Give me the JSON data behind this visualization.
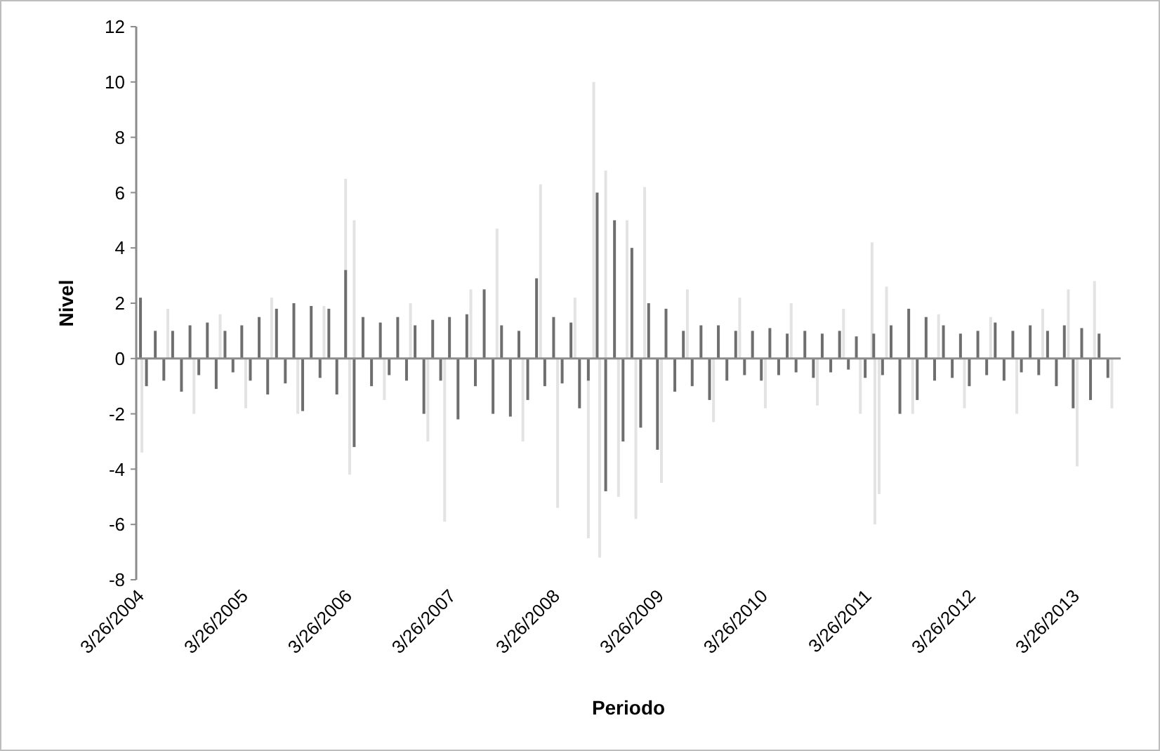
{
  "chart_data": {
    "type": "bar",
    "xlabel": "Periodo",
    "ylabel": "Nivel",
    "xlim": [
      "2004-03-26",
      "2013-09-15"
    ],
    "xticks": [
      {
        "value": "2004-03-26",
        "label": "3/26/2004"
      },
      {
        "value": "2005-03-26",
        "label": "3/26/2005"
      },
      {
        "value": "2006-03-26",
        "label": "3/26/2006"
      },
      {
        "value": "2007-03-26",
        "label": "3/26/2007"
      },
      {
        "value": "2008-03-26",
        "label": "3/26/2008"
      },
      {
        "value": "2009-03-26",
        "label": "3/26/2009"
      },
      {
        "value": "2010-03-26",
        "label": "3/26/2010"
      },
      {
        "value": "2011-03-26",
        "label": "3/26/2011"
      },
      {
        "value": "2012-03-26",
        "label": "3/26/2012"
      },
      {
        "value": "2013-03-26",
        "label": "3/26/2013"
      }
    ],
    "ylim": [
      -8,
      12
    ],
    "yticks": [
      -8,
      -6,
      -4,
      -2,
      0,
      2,
      4,
      6,
      8,
      10,
      12
    ],
    "series": [
      {
        "color": "#e3e3e3",
        "x": [
          "2004-04-15",
          "2004-07-15",
          "2004-10-15",
          "2005-01-15",
          "2005-04-15",
          "2005-07-15",
          "2005-10-15",
          "2006-01-15",
          "2006-04-01",
          "2006-04-15",
          "2006-05-01",
          "2006-08-15",
          "2006-11-15",
          "2007-01-15",
          "2007-03-15",
          "2007-06-15",
          "2007-09-15",
          "2007-12-15",
          "2008-02-15",
          "2008-04-15",
          "2008-06-15",
          "2008-08-01",
          "2008-08-20",
          "2008-09-10",
          "2008-10-01",
          "2008-11-15",
          "2008-12-15",
          "2009-01-15",
          "2009-02-15",
          "2009-04-15",
          "2009-07-15",
          "2009-10-15",
          "2010-01-15",
          "2010-04-15",
          "2010-07-15",
          "2010-10-15",
          "2011-01-15",
          "2011-03-15",
          "2011-04-25",
          "2011-05-05",
          "2011-05-20",
          "2011-06-15",
          "2011-09-15",
          "2011-12-15",
          "2012-03-15",
          "2012-06-15",
          "2012-09-15",
          "2012-12-15",
          "2013-03-15",
          "2013-04-15",
          "2013-06-15",
          "2013-08-15"
        ],
        "values": [
          -3.4,
          1.8,
          -2.0,
          1.6,
          -1.8,
          2.2,
          -2.0,
          1.9,
          6.5,
          -4.2,
          5.0,
          -1.5,
          2.0,
          -3.0,
          -5.9,
          2.5,
          4.7,
          -3.0,
          6.3,
          -5.4,
          2.2,
          -6.5,
          10.0,
          -7.2,
          6.8,
          -5.0,
          5.0,
          -5.8,
          6.2,
          -4.5,
          2.5,
          -2.3,
          2.2,
          -1.8,
          2.0,
          -1.7,
          1.8,
          -2.0,
          4.2,
          -6.0,
          -4.9,
          2.6,
          -2.0,
          1.6,
          -1.8,
          1.5,
          -2.0,
          1.8,
          2.5,
          -3.9,
          2.8,
          -1.8
        ]
      },
      {
        "color": "#6e6e6e",
        "x": [
          "2004-04-10",
          "2004-05-01",
          "2004-06-01",
          "2004-07-01",
          "2004-08-01",
          "2004-09-01",
          "2004-10-01",
          "2004-11-01",
          "2004-12-01",
          "2005-01-01",
          "2005-02-01",
          "2005-03-01",
          "2005-04-01",
          "2005-05-01",
          "2005-06-01",
          "2005-07-01",
          "2005-08-01",
          "2005-09-01",
          "2005-10-01",
          "2005-11-01",
          "2005-12-01",
          "2006-01-01",
          "2006-02-01",
          "2006-03-01",
          "2006-04-01",
          "2006-05-01",
          "2006-06-01",
          "2006-07-01",
          "2006-08-01",
          "2006-09-01",
          "2006-10-01",
          "2006-11-01",
          "2006-12-01",
          "2007-01-01",
          "2007-02-01",
          "2007-03-01",
          "2007-04-01",
          "2007-05-01",
          "2007-06-01",
          "2007-07-01",
          "2007-08-01",
          "2007-09-01",
          "2007-10-01",
          "2007-11-01",
          "2007-12-01",
          "2008-01-01",
          "2008-02-01",
          "2008-03-01",
          "2008-04-01",
          "2008-05-01",
          "2008-06-01",
          "2008-07-01",
          "2008-08-01",
          "2008-09-01",
          "2008-10-01",
          "2008-11-01",
          "2008-12-01",
          "2009-01-01",
          "2009-02-01",
          "2009-03-01",
          "2009-04-01",
          "2009-05-01",
          "2009-06-01",
          "2009-07-01",
          "2009-08-01",
          "2009-09-01",
          "2009-10-01",
          "2009-11-01",
          "2009-12-01",
          "2010-01-01",
          "2010-02-01",
          "2010-03-01",
          "2010-04-01",
          "2010-05-01",
          "2010-06-01",
          "2010-07-01",
          "2010-08-01",
          "2010-09-01",
          "2010-10-01",
          "2010-11-01",
          "2010-12-01",
          "2011-01-01",
          "2011-02-01",
          "2011-03-01",
          "2011-04-01",
          "2011-05-01",
          "2011-06-01",
          "2011-07-01",
          "2011-08-01",
          "2011-09-01",
          "2011-10-01",
          "2011-11-01",
          "2011-12-01",
          "2012-01-01",
          "2012-02-01",
          "2012-03-01",
          "2012-04-01",
          "2012-05-01",
          "2012-06-01",
          "2012-07-01",
          "2012-08-01",
          "2012-09-01",
          "2012-10-01",
          "2012-11-01",
          "2012-12-01",
          "2013-01-01",
          "2013-02-01",
          "2013-03-01",
          "2013-04-01",
          "2013-05-01",
          "2013-06-01",
          "2013-07-01",
          "2013-08-01"
        ],
        "values": [
          2.2,
          -1.0,
          1.0,
          -0.8,
          1.0,
          -1.2,
          1.2,
          -0.6,
          1.3,
          -1.1,
          1.0,
          -0.5,
          1.2,
          -0.8,
          1.5,
          -1.3,
          1.8,
          -0.9,
          2.0,
          -1.9,
          1.9,
          -0.7,
          1.8,
          -1.3,
          3.2,
          -3.2,
          1.5,
          -1.0,
          1.3,
          -0.6,
          1.5,
          -0.8,
          1.2,
          -2.0,
          1.4,
          -0.8,
          1.5,
          -2.2,
          1.6,
          -1.0,
          2.5,
          -2.0,
          1.2,
          -2.1,
          1.0,
          -1.5,
          2.9,
          -1.0,
          1.5,
          -0.9,
          1.3,
          -1.8,
          -0.8,
          6.0,
          -4.8,
          5.0,
          -3.0,
          4.0,
          -2.5,
          2.0,
          -3.3,
          1.8,
          -1.2,
          1.0,
          -1.0,
          1.2,
          -1.5,
          1.2,
          -0.8,
          1.0,
          -0.6,
          1.0,
          -0.8,
          1.1,
          -0.6,
          0.9,
          -0.5,
          1.0,
          -0.7,
          0.9,
          -0.5,
          1.0,
          -0.4,
          0.8,
          -0.7,
          0.9,
          -0.6,
          1.2,
          -2.0,
          1.8,
          -1.5,
          1.5,
          -0.8,
          1.2,
          -0.7,
          0.9,
          -1.0,
          1.0,
          -0.6,
          1.3,
          -0.8,
          1.0,
          -0.5,
          1.2,
          -0.6,
          1.0,
          -1.0,
          1.2,
          -1.8,
          1.1,
          -1.5,
          0.9,
          -0.7
        ]
      }
    ]
  }
}
